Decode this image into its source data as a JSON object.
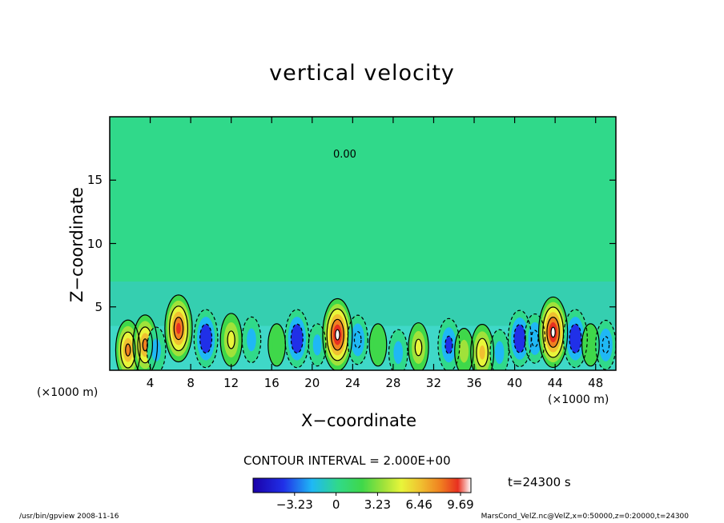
{
  "chart_data": {
    "type": "heatmap",
    "title": "vertical velocity",
    "xlabel": "X−coordinate",
    "ylabel": "Z−coordinate",
    "x_unit_left": "(×1000 m)",
    "x_unit_right": "(×1000 m)",
    "xlim": [
      0,
      50
    ],
    "ylim": [
      0,
      20
    ],
    "x_ticks": [
      4,
      8,
      12,
      16,
      20,
      24,
      28,
      32,
      36,
      40,
      44,
      48
    ],
    "y_ticks": [
      5,
      10,
      15
    ],
    "contour_interval_text": "CONTOUR INTERVAL = 2.000E+00",
    "contour_label": "0.00",
    "time_text": "t=24300 s",
    "colorbar": {
      "vmin": -6.46,
      "vmax": 10.5,
      "ticks": [
        -3.23,
        0,
        3.23,
        6.46,
        9.69
      ],
      "tick_labels": [
        "−3.23",
        "0",
        "3.23",
        "6.46",
        "9.69"
      ]
    },
    "cells": [
      {
        "x": 1.8,
        "z": 1.6,
        "w": 7
      },
      {
        "x": 3.5,
        "z": 2.0,
        "w": 7
      },
      {
        "x": 4.6,
        "z": 1.6,
        "w": -3
      },
      {
        "x": 6.8,
        "z": 3.3,
        "w": 9
      },
      {
        "x": 9.5,
        "z": 2.5,
        "w": -6.5
      },
      {
        "x": 12.0,
        "z": 2.4,
        "w": 5
      },
      {
        "x": 14.0,
        "z": 2.4,
        "w": -3
      },
      {
        "x": 16.5,
        "z": 2.0,
        "w": 2
      },
      {
        "x": 18.5,
        "z": 2.5,
        "w": -6.5
      },
      {
        "x": 20.5,
        "z": 2.0,
        "w": -2
      },
      {
        "x": 22.5,
        "z": 2.8,
        "w": 10.5
      },
      {
        "x": 24.5,
        "z": 2.4,
        "w": -4
      },
      {
        "x": 26.5,
        "z": 2.0,
        "w": 2
      },
      {
        "x": 28.5,
        "z": 1.4,
        "w": -3
      },
      {
        "x": 30.5,
        "z": 1.8,
        "w": 4
      },
      {
        "x": 33.5,
        "z": 2.0,
        "w": -5
      },
      {
        "x": 35.0,
        "z": 1.5,
        "w": 3
      },
      {
        "x": 36.8,
        "z": 1.4,
        "w": 6
      },
      {
        "x": 38.5,
        "z": 1.4,
        "w": -3
      },
      {
        "x": 40.5,
        "z": 2.5,
        "w": -6
      },
      {
        "x": 42.0,
        "z": 2.5,
        "w": -4
      },
      {
        "x": 43.8,
        "z": 3.0,
        "w": 10
      },
      {
        "x": 46.0,
        "z": 2.5,
        "w": -6.5
      },
      {
        "x": 47.5,
        "z": 2.0,
        "w": 2
      },
      {
        "x": 49.0,
        "z": 2.0,
        "w": -4
      }
    ]
  },
  "footer": {
    "left": "/usr/bin/gpview   2008-11-16",
    "right": "MarsCond_VelZ.nc@VelZ,x=0:50000,z=0:20000,t=24300"
  }
}
